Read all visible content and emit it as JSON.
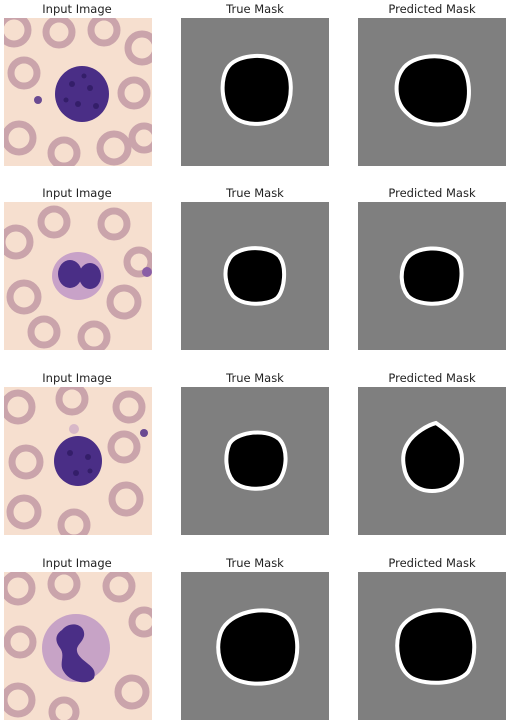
{
  "column_titles": [
    "Input Image",
    "True Mask",
    "Predicted Mask"
  ],
  "rows": [
    {
      "input_title": "Input Image",
      "true_title": "True Mask",
      "pred_title": "Predicted Mask"
    },
    {
      "input_title": "Input Image",
      "true_title": "True Mask",
      "pred_title": "Predicted Mask"
    },
    {
      "input_title": "Input Image",
      "true_title": "True Mask",
      "pred_title": "Predicted Mask"
    },
    {
      "input_title": "Input Image",
      "true_title": "True Mask",
      "pred_title": "Predicted Mask"
    }
  ],
  "colors": {
    "mask_background": "#7f7f7f",
    "mask_fill": "#000000",
    "mask_outline": "#ffffff",
    "cell_nucleus": "#4a2e86",
    "red_blood_cell": "#c9a3ab",
    "image_background": "#f6dfcf"
  }
}
